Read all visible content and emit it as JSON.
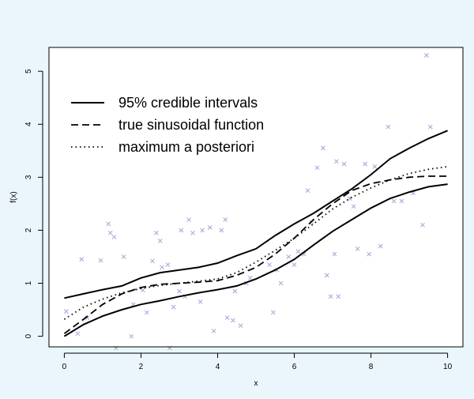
{
  "chart_data": {
    "type": "line",
    "title": "",
    "xlabel": "x",
    "ylabel": "f(x)",
    "xlim": [
      -0.4,
      10.4
    ],
    "ylim": [
      -0.2,
      5.45
    ],
    "xticks": [
      0,
      2,
      4,
      6,
      8,
      10
    ],
    "yticks": [
      0,
      1,
      2,
      3,
      4,
      5
    ],
    "grid": false,
    "legend_position": "top-left",
    "background_color": "#eaf6fb",
    "plot_background_color": "#ffffff",
    "point_color": "#a9aed6",
    "line_color": "#000000",
    "series": [
      {
        "name": "95% credible intervals",
        "style": "solid",
        "x": [
          0,
          0.5,
          1,
          1.5,
          2,
          2.5,
          3,
          3.5,
          4,
          4.5,
          5,
          5.5,
          6,
          6.5,
          7,
          7.5,
          8,
          8.5,
          9,
          9.5,
          10
        ],
        "y": [
          0.72,
          0.8,
          0.88,
          0.95,
          1.1,
          1.2,
          1.25,
          1.3,
          1.38,
          1.52,
          1.65,
          1.9,
          2.12,
          2.32,
          2.55,
          2.78,
          3.05,
          3.35,
          3.55,
          3.73,
          3.88
        ]
      },
      {
        "name": "",
        "style": "solid",
        "x": [
          0,
          0.5,
          1,
          1.5,
          2,
          2.5,
          3,
          3.5,
          4,
          4.5,
          5,
          5.5,
          6,
          6.5,
          7,
          7.5,
          8,
          8.5,
          9,
          9.5,
          10
        ],
        "y": [
          0.0,
          0.22,
          0.38,
          0.5,
          0.6,
          0.67,
          0.75,
          0.82,
          0.88,
          0.95,
          1.08,
          1.25,
          1.45,
          1.72,
          1.98,
          2.2,
          2.42,
          2.6,
          2.72,
          2.82,
          2.87
        ]
      },
      {
        "name": "true sinusoidal function",
        "style": "dashed",
        "x": [
          0,
          0.5,
          1,
          1.5,
          2,
          2.5,
          3,
          3.5,
          4,
          4.5,
          5,
          5.5,
          6,
          6.5,
          7,
          7.5,
          8,
          8.5,
          9,
          9.5,
          10
        ],
        "y": [
          0.05,
          0.32,
          0.6,
          0.8,
          0.92,
          0.98,
          1.0,
          1.02,
          1.05,
          1.15,
          1.3,
          1.55,
          1.85,
          2.2,
          2.5,
          2.75,
          2.88,
          2.95,
          3.0,
          3.02,
          3.02
        ]
      },
      {
        "name": "maximum a posteriori",
        "style": "dotted",
        "x": [
          0,
          0.5,
          1,
          1.5,
          2,
          2.5,
          3,
          3.5,
          4,
          4.5,
          5,
          5.5,
          6,
          6.5,
          7,
          7.5,
          8,
          8.5,
          9,
          9.5,
          10
        ],
        "y": [
          0.32,
          0.55,
          0.7,
          0.82,
          0.9,
          0.96,
          1.0,
          1.04,
          1.08,
          1.2,
          1.4,
          1.62,
          1.85,
          2.12,
          2.4,
          2.62,
          2.8,
          2.95,
          3.07,
          3.15,
          3.2
        ]
      }
    ],
    "points": {
      "marker": "x",
      "x": [
        0.05,
        0.35,
        0.45,
        0.6,
        0.95,
        1.15,
        1.2,
        1.3,
        1.35,
        1.55,
        1.75,
        1.8,
        2.05,
        2.15,
        2.3,
        2.4,
        2.5,
        2.55,
        2.7,
        2.75,
        2.85,
        3.0,
        3.05,
        3.15,
        3.25,
        3.35,
        3.55,
        3.6,
        3.8,
        3.9,
        4.1,
        4.2,
        4.25,
        4.4,
        4.45,
        4.6,
        4.75,
        4.85,
        5.35,
        5.45,
        5.55,
        5.65,
        5.85,
        6.0,
        6.1,
        6.25,
        6.35,
        6.45,
        6.6,
        6.75,
        6.85,
        6.95,
        7.05,
        7.1,
        7.15,
        7.3,
        7.45,
        7.55,
        7.65,
        7.85,
        7.95,
        8.1,
        8.25,
        8.45,
        8.6,
        8.8,
        9.1,
        9.35,
        9.45,
        9.55
      ],
      "y": [
        0.47,
        0.05,
        1.45,
        0.35,
        1.43,
        2.12,
        1.95,
        1.87,
        -0.22,
        1.5,
        0.0,
        0.6,
        0.87,
        0.45,
        1.42,
        1.95,
        1.8,
        1.3,
        1.35,
        -0.22,
        0.55,
        0.85,
        2.0,
        0.75,
        2.2,
        1.95,
        0.65,
        2.0,
        2.05,
        0.1,
        2.0,
        2.2,
        0.35,
        0.3,
        0.85,
        0.2,
        1.0,
        1.1,
        1.35,
        0.45,
        1.25,
        1.0,
        1.5,
        1.35,
        1.6,
        1.55,
        2.75,
        2.15,
        3.18,
        3.55,
        1.15,
        0.75,
        1.55,
        3.3,
        0.75,
        3.25,
        2.6,
        2.45,
        1.65,
        3.25,
        1.55,
        3.2,
        1.7,
        3.95,
        2.55,
        2.55,
        2.7,
        2.1,
        5.3,
        3.95
      ]
    }
  }
}
